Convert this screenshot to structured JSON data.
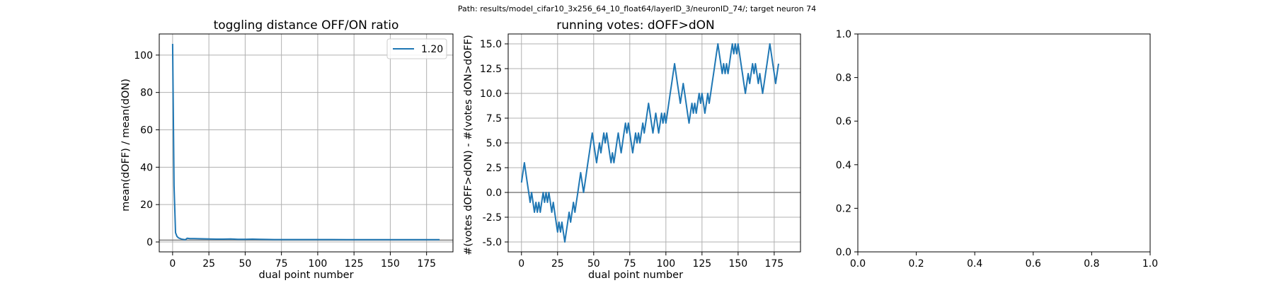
{
  "suptitle": "Path: results/model_cifar10_3x256_64_10_float64/layerID_3/neuronID_74/; target neuron 74",
  "colors": {
    "series": "#1f77b4",
    "grid": "#b0b0b0",
    "reference_line": "#808080",
    "background": "#ffffff"
  },
  "chart_data": [
    {
      "type": "line",
      "title": "toggling distance OFF/ON ratio",
      "xlabel": "dual point number",
      "ylabel": "mean(dOFF) / mean(dON)",
      "xlim": [
        -9.2,
        193.2
      ],
      "ylim": [
        -5.3,
        111.3
      ],
      "xticks": [
        0,
        25,
        50,
        75,
        100,
        125,
        150,
        175
      ],
      "yticks": [
        0,
        20,
        40,
        60,
        80,
        100
      ],
      "grid": true,
      "legend": "top-right",
      "reference_line_y": 1.0,
      "series": [
        {
          "name": "1.20",
          "x": [
            0,
            1,
            2,
            3,
            4,
            5,
            6,
            7,
            8,
            9,
            10,
            12,
            15,
            20,
            25,
            30,
            35,
            40,
            45,
            50,
            55,
            60,
            70,
            80,
            90,
            100,
            110,
            120,
            130,
            140,
            150,
            160,
            170,
            180,
            184
          ],
          "y": [
            106.0,
            30.0,
            5.0,
            3.0,
            2.2,
            1.9,
            1.6,
            1.4,
            1.3,
            1.3,
            2.0,
            1.8,
            1.8,
            1.7,
            1.6,
            1.5,
            1.5,
            1.6,
            1.4,
            1.4,
            1.5,
            1.4,
            1.3,
            1.3,
            1.3,
            1.3,
            1.3,
            1.2,
            1.2,
            1.2,
            1.2,
            1.2,
            1.2,
            1.2,
            1.2
          ]
        }
      ]
    },
    {
      "type": "line",
      "title": "running votes: dOFF>dON",
      "xlabel": "dual point number",
      "ylabel": "#(votes dOFF>dON) - #(votes dON>dOFF)",
      "xlim": [
        -9.2,
        193.2
      ],
      "ylim": [
        -6.0,
        16.0
      ],
      "xticks": [
        0,
        25,
        50,
        75,
        100,
        125,
        150,
        175
      ],
      "ytick_labels": [
        "-5.0",
        "-2.5",
        "0.0",
        "2.5",
        "5.0",
        "7.5",
        "10.0",
        "12.5",
        "15.0"
      ],
      "yticks": [
        -5.0,
        -2.5,
        0.0,
        2.5,
        5.0,
        7.5,
        10.0,
        12.5,
        15.0
      ],
      "grid": true,
      "reference_line_y": 0.0,
      "series": [
        {
          "x_start": 0,
          "values": [
            1,
            2,
            3,
            2,
            1,
            0,
            -1,
            0,
            -1,
            -2,
            -1,
            -2,
            -1,
            -2,
            -1,
            0,
            -1,
            0,
            -1,
            0,
            -1,
            -2,
            -1,
            -2,
            -3,
            -4,
            -3,
            -4,
            -3,
            -4,
            -5,
            -4,
            -3,
            -2,
            -3,
            -2,
            -1,
            -2,
            -1,
            0,
            1,
            2,
            1,
            0,
            1,
            2,
            3,
            4,
            5,
            6,
            5,
            4,
            3,
            4,
            5,
            4,
            5,
            6,
            5,
            6,
            5,
            4,
            3,
            4,
            3,
            4,
            5,
            6,
            5,
            4,
            5,
            6,
            7,
            6,
            7,
            6,
            5,
            4,
            5,
            6,
            5,
            6,
            5,
            6,
            7,
            6,
            7,
            8,
            9,
            8,
            7,
            6,
            7,
            8,
            7,
            6,
            7,
            8,
            7,
            8,
            7,
            8,
            9,
            10,
            11,
            12,
            13,
            12,
            11,
            10,
            9,
            10,
            11,
            10,
            9,
            8,
            7,
            8,
            9,
            8,
            9,
            8,
            9,
            10,
            9,
            10,
            9,
            8,
            9,
            10,
            9,
            10,
            11,
            12,
            13,
            14,
            15,
            14,
            13,
            12,
            13,
            12,
            13,
            12,
            13,
            14,
            15,
            14,
            15,
            14,
            15,
            14,
            13,
            12,
            11,
            10,
            11,
            12,
            11,
            12,
            13,
            12,
            13,
            12,
            11,
            12,
            11,
            10,
            11,
            12,
            13,
            14,
            15,
            14,
            13,
            12,
            11,
            12,
            13
          ]
        }
      ]
    },
    {
      "type": "line",
      "title": "",
      "xlim": [
        0.0,
        1.0
      ],
      "ylim": [
        0.0,
        1.0
      ],
      "xtick_labels": [
        "0.0",
        "0.2",
        "0.4",
        "0.6",
        "0.8",
        "1.0"
      ],
      "ytick_labels": [
        "0.0",
        "0.2",
        "0.4",
        "0.6",
        "0.8",
        "1.0"
      ],
      "grid": false,
      "series": []
    }
  ]
}
